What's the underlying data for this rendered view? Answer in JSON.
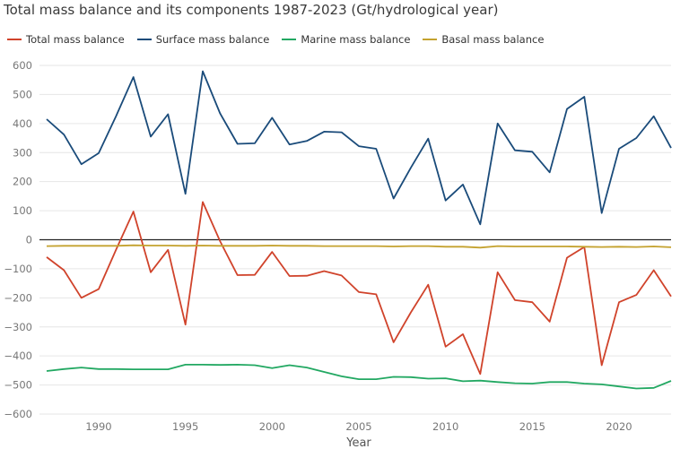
{
  "title": "Total mass balance and its components 1987-2023 (Gt/hydrological year)",
  "chart_data": {
    "type": "line",
    "title": "Total mass balance and its components 1987-2023 (Gt/hydrological year)",
    "xlabel": "Year",
    "ylabel": "",
    "xlim": [
      1987,
      2023
    ],
    "ylim": [
      -600,
      600
    ],
    "yticks": [
      -600,
      -500,
      -400,
      -300,
      -200,
      -100,
      0,
      100,
      200,
      300,
      400,
      500,
      600
    ],
    "xticks": [
      1990,
      1995,
      2000,
      2005,
      2010,
      2015,
      2020
    ],
    "grid": "horizontal",
    "legend": "top-left",
    "x": [
      1987,
      1988,
      1989,
      1990,
      1991,
      1992,
      1993,
      1994,
      1995,
      1996,
      1997,
      1998,
      1999,
      2000,
      2001,
      2002,
      2003,
      2004,
      2005,
      2006,
      2007,
      2008,
      2009,
      2010,
      2011,
      2012,
      2013,
      2014,
      2015,
      2016,
      2017,
      2018,
      2019,
      2020,
      2021,
      2022,
      2023
    ],
    "series": [
      {
        "name": "Total mass balance",
        "color": "#d0432b",
        "values": [
          -60,
          -105,
          -200,
          -170,
          -35,
          97,
          -112,
          -35,
          -292,
          130,
          -5,
          -122,
          -121,
          -42,
          -125,
          -124,
          -108,
          -123,
          -180,
          -188,
          -353,
          -250,
          -155,
          -368,
          -325,
          -462,
          -112,
          -208,
          -215,
          -282,
          -62,
          -25,
          -432,
          -215,
          -190,
          -105,
          -195
        ]
      },
      {
        "name": "Surface mass balance",
        "color": "#1a4b7a",
        "values": [
          415,
          362,
          260,
          298,
          425,
          560,
          355,
          432,
          158,
          580,
          435,
          330,
          332,
          420,
          328,
          340,
          372,
          370,
          322,
          313,
          142,
          248,
          348,
          135,
          190,
          53,
          400,
          308,
          303,
          232,
          450,
          492,
          92,
          313,
          350,
          425,
          316
        ]
      },
      {
        "name": "Marine mass balance",
        "color": "#22a862",
        "values": [
          -452,
          -445,
          -440,
          -445,
          -445,
          -446,
          -446,
          -446,
          -430,
          -430,
          -431,
          -430,
          -432,
          -442,
          -432,
          -440,
          -455,
          -470,
          -480,
          -480,
          -472,
          -473,
          -478,
          -477,
          -487,
          -485,
          -490,
          -494,
          -495,
          -490,
          -490,
          -495,
          -498,
          -505,
          -512,
          -510,
          -486
        ]
      },
      {
        "name": "Basal mass balance",
        "color": "#c4a22f",
        "values": [
          -22,
          -21,
          -21,
          -21,
          -21,
          -19,
          -20,
          -20,
          -21,
          -20,
          -21,
          -21,
          -21,
          -20,
          -21,
          -21,
          -22,
          -22,
          -22,
          -22,
          -23,
          -22,
          -22,
          -24,
          -24,
          -27,
          -22,
          -23,
          -23,
          -23,
          -23,
          -24,
          -25,
          -24,
          -25,
          -23,
          -26
        ]
      }
    ]
  }
}
